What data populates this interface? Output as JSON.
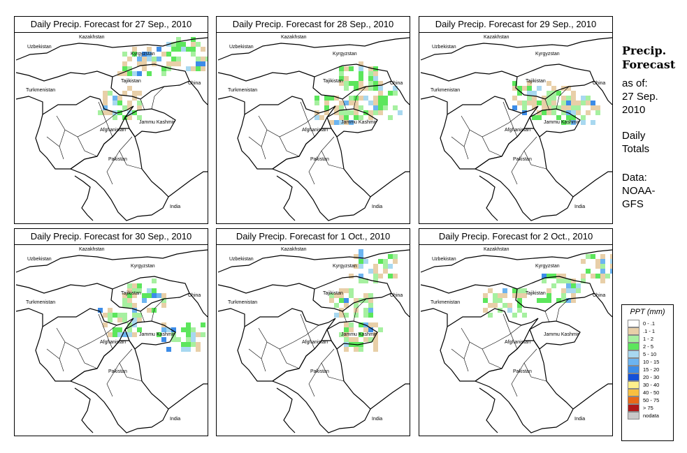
{
  "panels": [
    {
      "title": "Daily Precip. Forecast for  27 Sep., 2010"
    },
    {
      "title": "Daily Precip. Forecast for  28 Sep., 2010"
    },
    {
      "title": "Daily Precip. Forecast for  29 Sep., 2010"
    },
    {
      "title": "Daily Precip. Forecast for  30 Sep., 2010"
    },
    {
      "title": "Daily Precip. Forecast for  1 Oct., 2010"
    },
    {
      "title": "Daily Precip. Forecast for  2 Oct., 2010"
    }
  ],
  "map_labels": {
    "kazakhstan": "Kazakhstan",
    "uzbekistan": "Uzbekistan",
    "kyrgyzstan": "Kyrgyzstan",
    "tajikistan": "Tajikistan",
    "turkmenistan": "Turkmenistan",
    "china": "China",
    "jammu_kashmir": "Jammu Kashmir",
    "afghanistan": "Afghanistan",
    "pakistan": "Pakistan",
    "india": "India"
  },
  "sidebar": {
    "heading_line1": "Precip.",
    "heading_line2": "Forecast",
    "asof_line1": "as of:",
    "asof_line2": "27 Sep.",
    "asof_line3": "2010",
    "totals_line1": "Daily",
    "totals_line2": "Totals",
    "data_line1": "Data:",
    "data_line2": "NOAA-",
    "data_line3": "GFS"
  },
  "legend": {
    "title": "PPT (mm)",
    "items": [
      {
        "label": "0 - .1",
        "color": "#ffffff"
      },
      {
        "label": ".1 - 1",
        "color": "#e8cfa8"
      },
      {
        "label": "1 - 2",
        "color": "#a6f0a0"
      },
      {
        "label": "2 - 5",
        "color": "#5ce65c"
      },
      {
        "label": "5 - 10",
        "color": "#a8d8f0"
      },
      {
        "label": "10 - 15",
        "color": "#6cb4f0"
      },
      {
        "label": "15 - 20",
        "color": "#3c8ce8"
      },
      {
        "label": "20 - 30",
        "color": "#1450d8"
      },
      {
        "label": "30 - 40",
        "color": "#fff08c"
      },
      {
        "label": "40 - 50",
        "color": "#f8c040"
      },
      {
        "label": "50 - 75",
        "color": "#e86818"
      },
      {
        "label": "> 75",
        "color": "#b01818"
      },
      {
        "label": "nodata",
        "color": "#c8c8c8"
      }
    ]
  }
}
